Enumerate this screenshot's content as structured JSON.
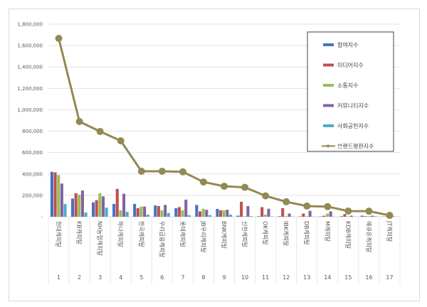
{
  "chart_data": {
    "type": "bar",
    "title": "",
    "xlabel": "",
    "ylabel": "",
    "ylim": [
      0,
      1800000
    ],
    "yticks": [
      0,
      200000,
      400000,
      600000,
      800000,
      1000000,
      1200000,
      1400000,
      1600000,
      1800000
    ],
    "ytick_labels": [
      "-",
      "200,000",
      "400,000",
      "600,000",
      "800,000",
      "1,000,000",
      "1,200,000",
      "1,400,000",
      "1,600,000",
      "1,800,000"
    ],
    "grid": true,
    "legend_position": "top-right",
    "categories": [
      "현대캐피탈",
      "KB캐피탈",
      "NH농협캐피탈",
      "하나캐피탈",
      "한국캐피탈",
      "우리금융캐피탈",
      "롯데캐피탈",
      "JB우리캐피탈",
      "BNK캐피탈",
      "신한캐피탈",
      "OK캐피탈",
      "IBK캐피탈",
      "DB캐피탈",
      "M캐피탈",
      "KDB캐피탈",
      "애큐온캐피탈",
      "JT캐피탈"
    ],
    "ranks": [
      "1",
      "2",
      "3",
      "4",
      "5",
      "6",
      "7",
      "8",
      "9",
      "10",
      "11",
      "12",
      "13",
      "14",
      "15",
      "16",
      "17"
    ],
    "series": [
      {
        "name": "참여지수",
        "kind": "bar",
        "color": "#4472c4",
        "values": [
          420000,
          170000,
          135000,
          120000,
          120000,
          105000,
          80000,
          110000,
          73000,
          10000,
          5000,
          5000,
          3000,
          3000,
          5000,
          10000,
          2000
        ]
      },
      {
        "name": "미디어지수",
        "kind": "bar",
        "color": "#c0504d",
        "values": [
          415000,
          220000,
          155000,
          260000,
          80000,
          100000,
          90000,
          50000,
          60000,
          140000,
          90000,
          80000,
          30000,
          10000,
          25000,
          5000,
          2000
        ]
      },
      {
        "name": "소통지수",
        "kind": "bar",
        "color": "#9bbb59",
        "values": [
          390000,
          205000,
          220000,
          60000,
          95000,
          60000,
          60000,
          75000,
          60000,
          5000,
          20000,
          5000,
          5000,
          30000,
          3000,
          5000,
          1000
        ]
      },
      {
        "name": "커뮤니티지수",
        "kind": "bar",
        "color": "#8064a2",
        "values": [
          310000,
          245000,
          190000,
          215000,
          95000,
          110000,
          160000,
          65000,
          65000,
          100000,
          75000,
          30000,
          55000,
          50000,
          10000,
          10000,
          5000
        ]
      },
      {
        "name": "사회공헌지수",
        "kind": "bar",
        "color": "#4bacc6",
        "values": [
          120000,
          40000,
          85000,
          45000,
          20000,
          35000,
          15000,
          15000,
          20000,
          5000,
          3000,
          2000,
          2000,
          2000,
          2000,
          5000,
          1000
        ]
      },
      {
        "name": "브랜드평판지수",
        "kind": "line",
        "color": "#938953",
        "values": [
          1667000,
          890000,
          797000,
          710000,
          425000,
          425000,
          420000,
          325000,
          285000,
          275000,
          195000,
          140000,
          100000,
          95000,
          53000,
          52000,
          13000
        ]
      }
    ]
  }
}
